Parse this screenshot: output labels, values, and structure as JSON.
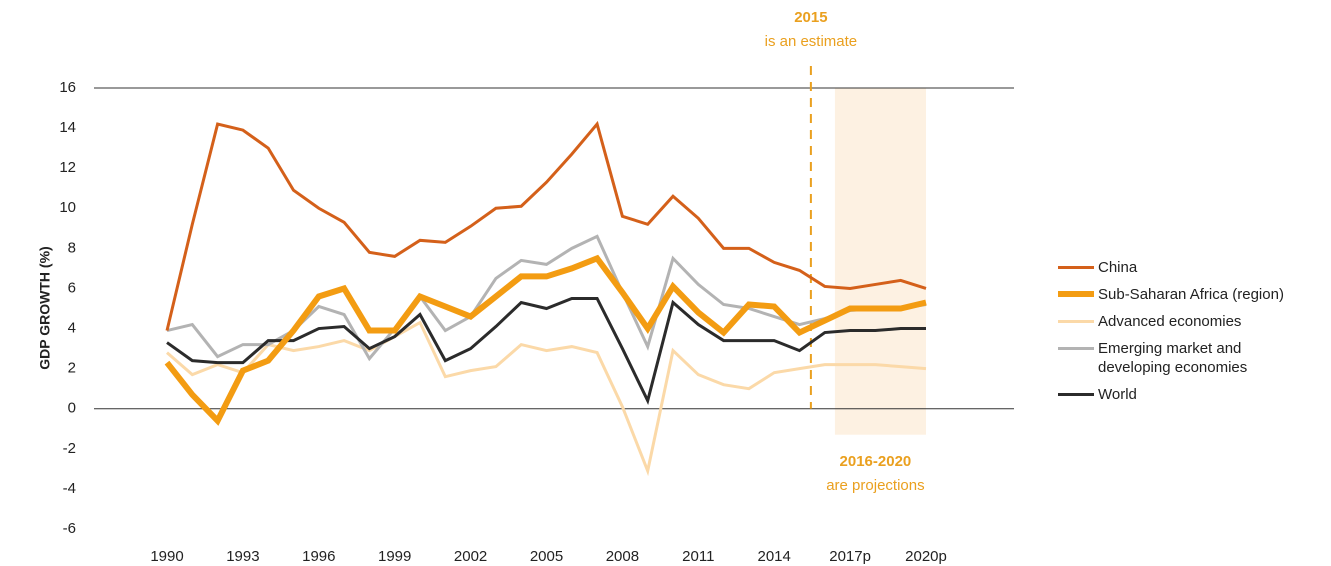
{
  "chart_data": {
    "type": "line",
    "y_label": "GDP GROWTH (%)",
    "categories": [
      "1990",
      null,
      null,
      "1993",
      null,
      null,
      "1996",
      null,
      null,
      "1999",
      null,
      null,
      "2002",
      null,
      null,
      "2005",
      null,
      null,
      "2008",
      null,
      null,
      "2011",
      null,
      null,
      "2014",
      null,
      null,
      "2017p",
      null,
      null,
      "2020p"
    ],
    "series": [
      {
        "name": "China",
        "color": "#d4601a",
        "width": 3,
        "values": [
          3.9,
          9.2,
          14.2,
          13.9,
          13.0,
          10.9,
          10.0,
          9.3,
          7.8,
          7.6,
          8.4,
          8.3,
          9.1,
          10.0,
          10.1,
          11.3,
          12.7,
          14.2,
          9.6,
          9.2,
          10.6,
          9.5,
          8.0,
          8.0,
          7.3,
          6.9,
          6.1,
          6.0,
          6.2,
          6.4,
          6.0
        ]
      },
      {
        "name": "Sub-Saharan Africa (region)",
        "color": "#f39c12",
        "width": 6,
        "values": [
          2.3,
          0.7,
          -0.6,
          1.9,
          2.4,
          3.9,
          5.6,
          6.0,
          3.9,
          3.9,
          5.6,
          5.1,
          4.6,
          5.6,
          6.6,
          6.6,
          7.0,
          7.5,
          5.8,
          4.0,
          6.1,
          4.8,
          3.8,
          5.2,
          5.1,
          3.8,
          4.4,
          5.0,
          5.0,
          5.0,
          5.3
        ]
      },
      {
        "name": "Advanced economies",
        "color": "#fbd9a8",
        "width": 3,
        "values": [
          2.8,
          1.7,
          2.2,
          1.8,
          3.2,
          2.9,
          3.1,
          3.4,
          2.9,
          3.6,
          4.3,
          1.6,
          1.9,
          2.1,
          3.2,
          2.9,
          3.1,
          2.8,
          0.1,
          -3.1,
          2.9,
          1.7,
          1.2,
          1.0,
          1.8,
          2.0,
          2.2,
          2.2,
          2.2,
          2.1,
          2.0
        ]
      },
      {
        "name": "Emerging market and developing economies",
        "color": "#b3b3b3",
        "width": 3,
        "values": [
          3.9,
          4.2,
          2.6,
          3.2,
          3.2,
          3.9,
          5.1,
          4.7,
          2.5,
          4.0,
          5.6,
          3.9,
          4.6,
          6.5,
          7.4,
          7.2,
          8.0,
          8.6,
          5.8,
          3.1,
          7.5,
          6.2,
          5.2,
          5.0,
          4.6,
          4.2,
          4.5,
          4.9,
          5.0,
          5.0,
          5.2
        ]
      },
      {
        "name": "World",
        "color": "#2b2b2b",
        "width": 3,
        "values": [
          3.3,
          2.4,
          2.3,
          2.3,
          3.4,
          3.4,
          4.0,
          4.1,
          3.0,
          3.6,
          4.7,
          2.4,
          3.0,
          4.1,
          5.3,
          5.0,
          5.5,
          5.5,
          3.0,
          0.4,
          5.3,
          4.2,
          3.4,
          3.4,
          3.4,
          2.9,
          3.8,
          3.9,
          3.9,
          4.0,
          4.0
        ]
      }
    ],
    "ylim": [
      -6,
      16
    ],
    "yticks": [
      -6,
      -4,
      -2,
      0,
      2,
      4,
      6,
      8,
      10,
      12,
      14,
      16
    ],
    "legend": "right",
    "annotations": [
      {
        "title": "2015",
        "text": "is an estimate",
        "color": "#eaa01f"
      },
      {
        "title": "2016-2020",
        "text": "are projections",
        "color": "#eaa01f"
      }
    ]
  }
}
